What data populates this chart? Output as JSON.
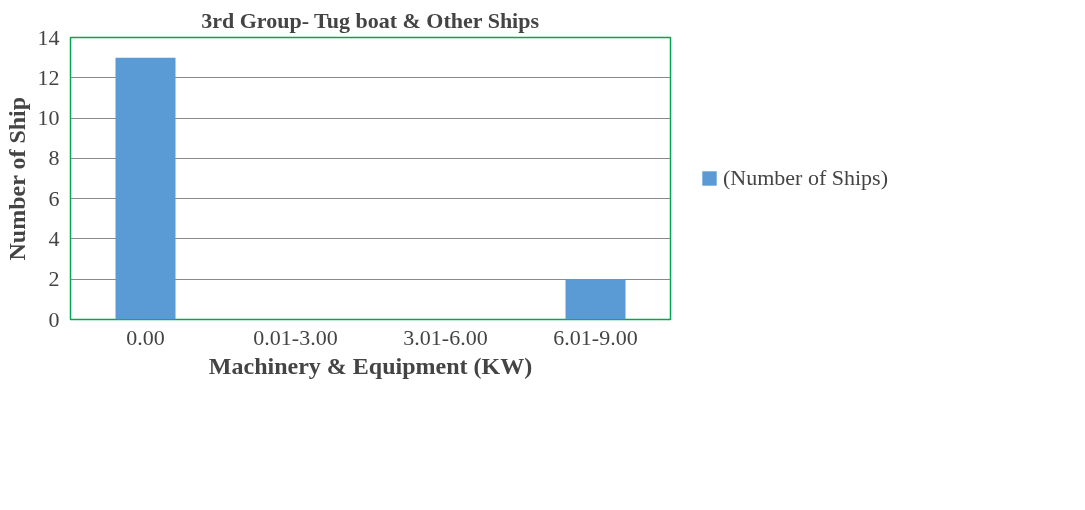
{
  "chart_data": {
    "type": "bar",
    "title": "3rd Group- Tug boat & Other Ships",
    "xlabel": "Machinery & Equipment (KW)",
    "ylabel": "Number of Ship",
    "categories": [
      "0.00",
      "0.01-3.00",
      "3.01-6.00",
      "6.01-9.00"
    ],
    "series": [
      {
        "name": "(Number of Ships)",
        "color": "#5b9bd5",
        "values": [
          13,
          0,
          0,
          2
        ]
      }
    ],
    "ylim": [
      0,
      14
    ],
    "yticks": [
      0,
      2,
      4,
      6,
      8,
      10,
      12,
      14
    ],
    "grid": "y",
    "legend": "right"
  }
}
